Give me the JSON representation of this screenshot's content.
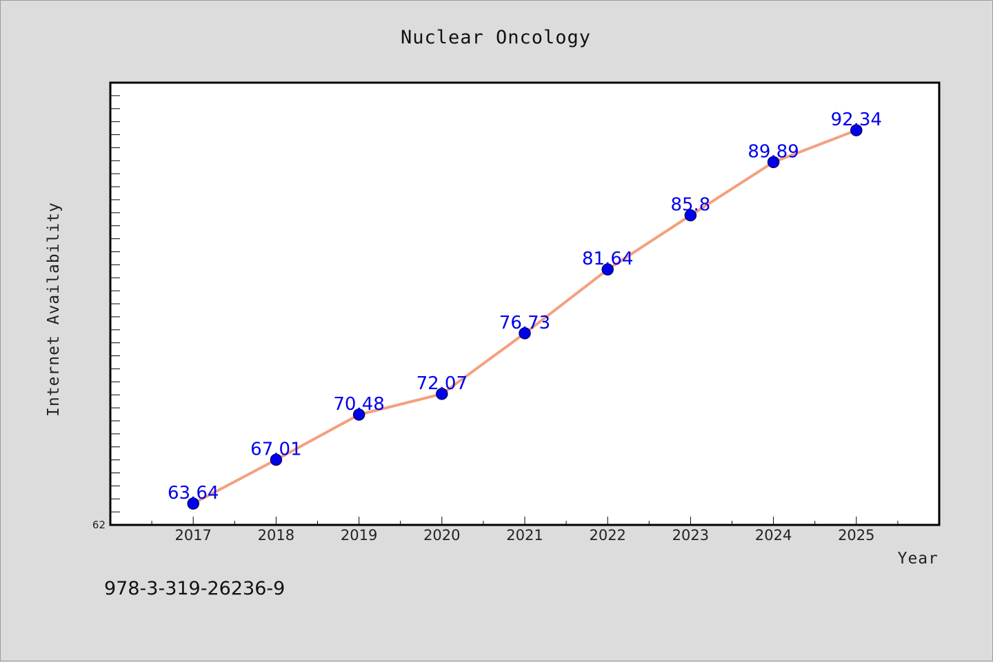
{
  "footer_code": "978-3-319-26236-9",
  "chart_data": {
    "type": "line",
    "title": "Nuclear Oncology",
    "xlabel": "Year",
    "ylabel": "Internet Availability",
    "categories": [
      "2017",
      "2018",
      "2019",
      "2020",
      "2021",
      "2022",
      "2023",
      "2024",
      "2025"
    ],
    "series": [
      {
        "values": [
          63.64,
          67.01,
          70.48,
          72.07,
          76.73,
          81.64,
          85.8,
          89.89,
          92.34
        ],
        "labels": [
          "63.64",
          "67.01",
          "70.48",
          "72.07",
          "76.73",
          "81.64",
          "85.8",
          "89.89",
          "92.34"
        ]
      }
    ],
    "ylim": [
      62,
      96
    ],
    "y_tick_labels": [
      "62"
    ],
    "x_min_category_index": -1.0,
    "grid": false,
    "legend": "none",
    "colors": {
      "line": "#f4a07f",
      "marker": "#0000ee",
      "marker_edge": "#000066",
      "data_label": "#0000ee",
      "plot_background": "#ffffff",
      "page_background": "#dcdcdc"
    }
  }
}
